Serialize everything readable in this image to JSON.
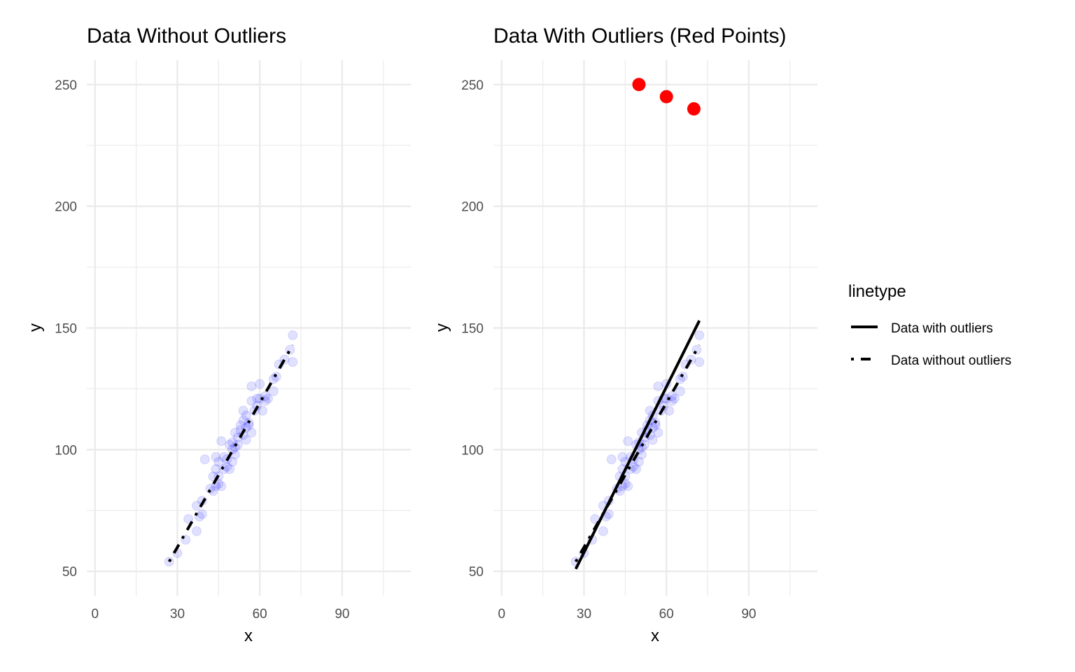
{
  "chart_data": [
    {
      "type": "scatter",
      "title": "Data Without Outliers",
      "xlabel": "x",
      "ylabel": "y",
      "xlim": [
        -3,
        115
      ],
      "ylim": [
        40,
        260
      ],
      "xticks": [
        0,
        30,
        60,
        90
      ],
      "yticks": [
        50,
        100,
        150,
        200,
        250
      ],
      "grid": true,
      "series": [
        {
          "kind": "points",
          "color": "#0000ff",
          "opacity": 0.12,
          "points": [
            [
              27,
              54
            ],
            [
              30,
              57.5
            ],
            [
              33,
              63
            ],
            [
              34,
              71.5
            ],
            [
              37,
              66.5
            ],
            [
              37,
              77
            ],
            [
              38,
              72.5
            ],
            [
              39,
              73.5
            ],
            [
              39,
              79
            ],
            [
              40,
              96
            ],
            [
              42,
              84
            ],
            [
              43,
              89
            ],
            [
              43,
              83
            ],
            [
              44,
              97
            ],
            [
              44,
              85
            ],
            [
              44,
              92
            ],
            [
              45,
              95
            ],
            [
              45,
              86
            ],
            [
              45,
              89
            ],
            [
              46,
              103.5
            ],
            [
              46,
              85
            ],
            [
              47,
              92
            ],
            [
              47,
              97
            ],
            [
              48,
              93
            ],
            [
              48,
              96
            ],
            [
              49,
              102
            ],
            [
              49,
              92
            ],
            [
              50,
              100
            ],
            [
              50,
              103
            ],
            [
              50,
              95
            ],
            [
              51,
              98
            ],
            [
              51,
              107
            ],
            [
              51,
              101
            ],
            [
              52,
              105
            ],
            [
              52,
              102
            ],
            [
              53,
              110
            ],
            [
              53,
              108
            ],
            [
              54,
              106
            ],
            [
              54,
              112
            ],
            [
              54,
              116
            ],
            [
              55,
              109
            ],
            [
              55,
              114
            ],
            [
              55,
              104
            ],
            [
              56,
              111
            ],
            [
              56,
              110
            ],
            [
              57,
              120
            ],
            [
              57,
              107
            ],
            [
              57,
              126
            ],
            [
              58,
              116
            ],
            [
              59,
              118
            ],
            [
              59,
              121
            ],
            [
              60,
              121
            ],
            [
              60,
              127
            ],
            [
              61,
              116
            ],
            [
              62,
              120
            ],
            [
              62,
              122
            ],
            [
              63,
              121
            ],
            [
              65,
              124
            ],
            [
              65,
              129
            ],
            [
              66,
              130
            ],
            [
              67,
              135
            ],
            [
              69,
              137
            ],
            [
              71,
              141
            ],
            [
              72,
              147
            ],
            [
              72,
              136
            ]
          ]
        },
        {
          "kind": "line",
          "name": "Data without outliers",
          "linetype": "dotdash",
          "x": [
            27,
            72
          ],
          "y": [
            54,
            143
          ]
        }
      ]
    },
    {
      "type": "scatter",
      "title": "Data With Outliers (Red Points)",
      "xlabel": "x",
      "ylabel": "y",
      "xlim": [
        -3,
        115
      ],
      "ylim": [
        40,
        260
      ],
      "xticks": [
        0,
        30,
        60,
        90
      ],
      "yticks": [
        50,
        100,
        150,
        200,
        250
      ],
      "grid": true,
      "series": [
        {
          "kind": "points",
          "color": "#0000ff",
          "opacity": 0.12,
          "points": [
            [
              27,
              54
            ],
            [
              30,
              57.5
            ],
            [
              33,
              63
            ],
            [
              34,
              71.5
            ],
            [
              37,
              66.5
            ],
            [
              37,
              77
            ],
            [
              38,
              72.5
            ],
            [
              39,
              73.5
            ],
            [
              39,
              79
            ],
            [
              40,
              96
            ],
            [
              42,
              84
            ],
            [
              43,
              89
            ],
            [
              43,
              83
            ],
            [
              44,
              97
            ],
            [
              44,
              85
            ],
            [
              44,
              92
            ],
            [
              45,
              95
            ],
            [
              45,
              86
            ],
            [
              45,
              89
            ],
            [
              46,
              103.5
            ],
            [
              46,
              85
            ],
            [
              47,
              92
            ],
            [
              47,
              97
            ],
            [
              48,
              93
            ],
            [
              48,
              96
            ],
            [
              49,
              102
            ],
            [
              49,
              92
            ],
            [
              50,
              100
            ],
            [
              50,
              103
            ],
            [
              50,
              95
            ],
            [
              51,
              98
            ],
            [
              51,
              107
            ],
            [
              51,
              101
            ],
            [
              52,
              105
            ],
            [
              52,
              102
            ],
            [
              53,
              110
            ],
            [
              53,
              108
            ],
            [
              54,
              106
            ],
            [
              54,
              112
            ],
            [
              54,
              116
            ],
            [
              55,
              109
            ],
            [
              55,
              114
            ],
            [
              55,
              104
            ],
            [
              56,
              111
            ],
            [
              56,
              110
            ],
            [
              57,
              120
            ],
            [
              57,
              107
            ],
            [
              57,
              126
            ],
            [
              58,
              116
            ],
            [
              59,
              118
            ],
            [
              59,
              121
            ],
            [
              60,
              121
            ],
            [
              60,
              127
            ],
            [
              61,
              116
            ],
            [
              62,
              120
            ],
            [
              62,
              122
            ],
            [
              63,
              121
            ],
            [
              65,
              124
            ],
            [
              65,
              129
            ],
            [
              66,
              130
            ],
            [
              67,
              135
            ],
            [
              69,
              137
            ],
            [
              71,
              141
            ],
            [
              72,
              147
            ],
            [
              72,
              136
            ]
          ]
        },
        {
          "kind": "outliers",
          "color": "#ff0000",
          "points": [
            [
              50,
              250
            ],
            [
              60,
              245
            ],
            [
              70,
              240
            ]
          ]
        },
        {
          "kind": "line",
          "name": "Data with outliers",
          "linetype": "solid",
          "x": [
            27,
            72
          ],
          "y": [
            51,
            153
          ]
        },
        {
          "kind": "line",
          "name": "Data without outliers",
          "linetype": "dotdash",
          "x": [
            27,
            72
          ],
          "y": [
            54,
            143
          ]
        }
      ]
    }
  ],
  "legend": {
    "title": "linetype",
    "placement": "right",
    "items": [
      {
        "label": "Data with outliers",
        "linetype": "solid"
      },
      {
        "label": "Data without outliers",
        "linetype": "dotdash"
      }
    ]
  }
}
